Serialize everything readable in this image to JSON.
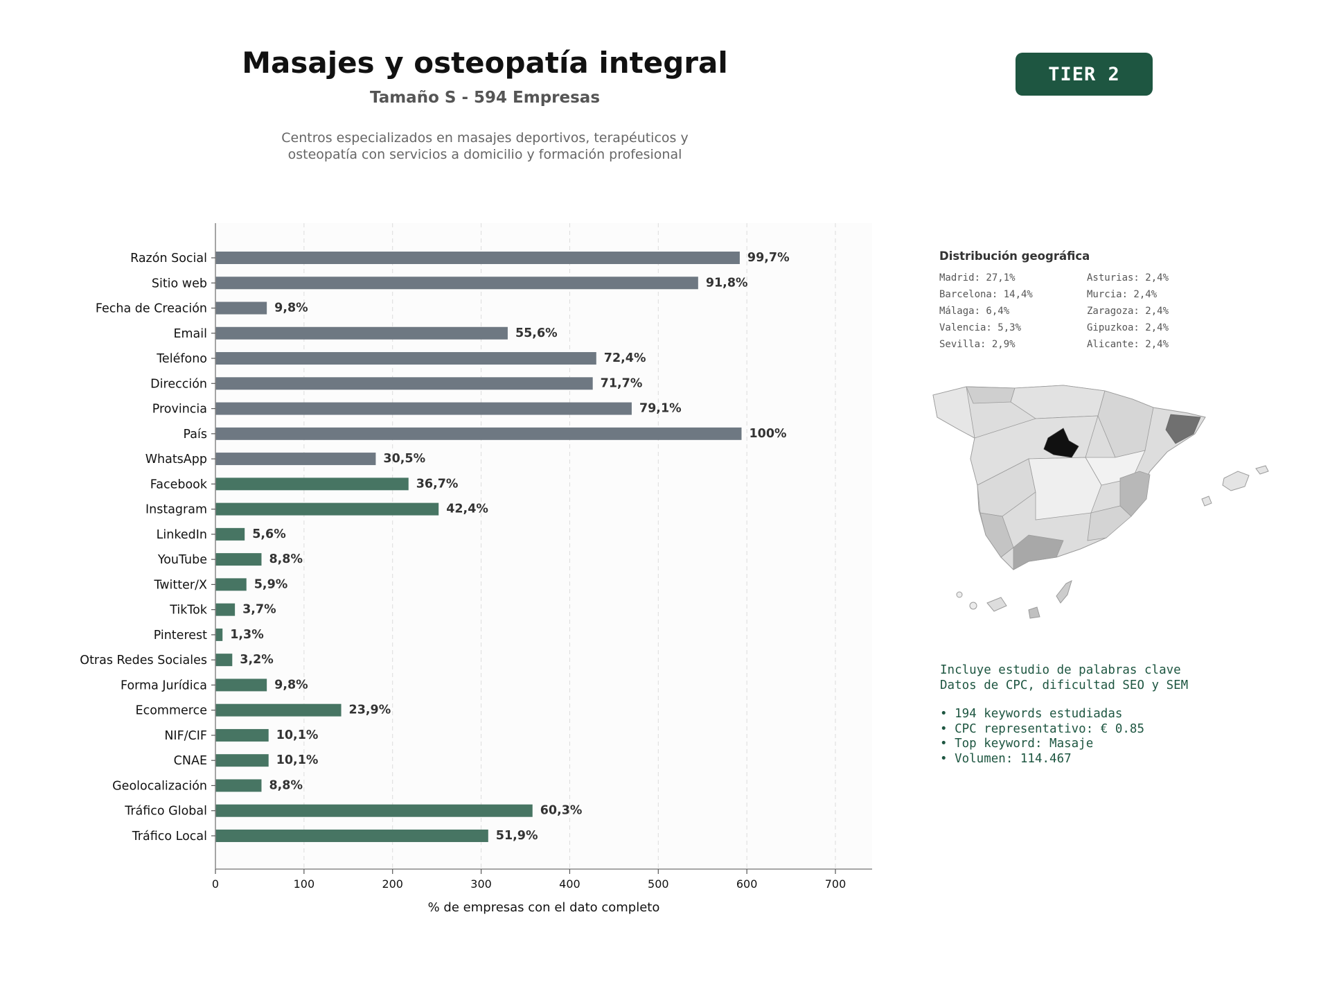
{
  "header": {
    "title": "Masajes y osteopatía integral",
    "subtitle": "Tamaño S - 594 Empresas",
    "description_line1": "Centros especializados en masajes deportivos, terapéuticos y",
    "description_line2": "osteopatía con servicios a domicilio y formación profesional",
    "tier_label": "TIER 2"
  },
  "colors": {
    "gray_bar": "#6e7882",
    "green_bar": "#477563",
    "accent": "#1e5641",
    "map_highlight": "#111111"
  },
  "chart_data": {
    "type": "bar",
    "orientation": "horizontal",
    "xlabel": "% de empresas con el dato completo",
    "xlim": [
      0,
      740
    ],
    "xticks": [
      0,
      100,
      200,
      300,
      400,
      500,
      600,
      700
    ],
    "grid": "x-dashed",
    "categories": [
      "Razón Social",
      "Sitio web",
      "Fecha de Creación",
      "Email",
      "Teléfono",
      "Dirección",
      "Provincia",
      "País",
      "WhatsApp",
      "Facebook",
      "Instagram",
      "LinkedIn",
      "YouTube",
      "Twitter/X",
      "TikTok",
      "Pinterest",
      "Otras Redes Sociales",
      "Forma Jurídica",
      "Ecommerce",
      "NIF/CIF",
      "CNAE",
      "Geolocalización",
      "Tráfico Global",
      "Tráfico Local"
    ],
    "values": [
      592,
      545,
      58,
      330,
      430,
      426,
      470,
      594,
      181,
      218,
      252,
      33,
      52,
      35,
      22,
      8,
      19,
      58,
      142,
      60,
      60,
      52,
      358,
      308
    ],
    "data_labels": [
      "99,7%",
      "91,8%",
      "9,8%",
      "55,6%",
      "72,4%",
      "71,7%",
      "79,1%",
      "100%",
      "30,5%",
      "36,7%",
      "42,4%",
      "5,6%",
      "8,8%",
      "5,9%",
      "3,7%",
      "1,3%",
      "3,2%",
      "9,8%",
      "23,9%",
      "10,1%",
      "10,1%",
      "8,8%",
      "60,3%",
      "51,9%"
    ],
    "bar_colors": [
      "gray",
      "gray",
      "gray",
      "gray",
      "gray",
      "gray",
      "gray",
      "gray",
      "gray",
      "green",
      "green",
      "green",
      "green",
      "green",
      "green",
      "green",
      "green",
      "green",
      "green",
      "green",
      "green",
      "green",
      "green",
      "green"
    ]
  },
  "geo": {
    "title": "Distribución geográfica",
    "left": [
      "Madrid: 27,1%",
      "Barcelona: 14,4%",
      "Málaga: 6,4%",
      "Valencia: 5,3%",
      "Sevilla: 2,9%"
    ],
    "right": [
      "Asturias: 2,4%",
      "Murcia: 2,4%",
      "Zaragoza: 2,4%",
      "Gipuzkoa: 2,4%",
      "Alicante: 2,4%"
    ]
  },
  "keywords": {
    "line1": "Incluye estudio de palabras clave",
    "line2": "Datos de CPC, dificultad SEO y SEM",
    "bullets": [
      "• 194 keywords estudiadas",
      "• CPC representativo: € 0.85",
      "• Top keyword: Masaje",
      "• Volumen: 114.467"
    ]
  }
}
